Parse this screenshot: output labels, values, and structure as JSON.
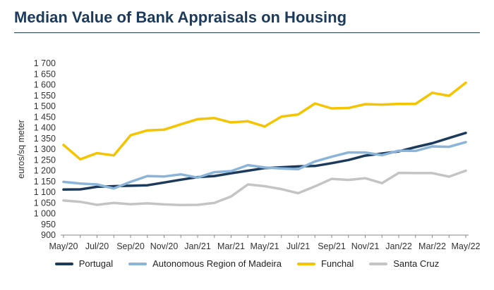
{
  "chart_data": {
    "type": "line",
    "title": "Median Value of Bank Appraisals on Housing",
    "ylabel": "euros/sq meter",
    "xlabel": "",
    "ylim": [
      900,
      1700
    ],
    "y_tick_labels": [
      "900",
      "950",
      "1 000",
      "1 050",
      "1 100",
      "1 150",
      "1 200",
      "1 250",
      "1 300",
      "1 350",
      "1 400",
      "1 450",
      "1 500",
      "1 550",
      "1 600",
      "1 650",
      "1 700"
    ],
    "y_ticks": [
      900,
      950,
      1000,
      1050,
      1100,
      1150,
      1200,
      1250,
      1300,
      1350,
      1400,
      1450,
      1500,
      1550,
      1600,
      1650,
      1700
    ],
    "categories": [
      "May/20",
      "Jun/20",
      "Jul/20",
      "Aug/20",
      "Sep/20",
      "Oct/20",
      "Nov/20",
      "Dec/20",
      "Jan/21",
      "Feb/21",
      "Mar/21",
      "Apr/21",
      "May/21",
      "Jun/21",
      "Jul/21",
      "Aug/21",
      "Sep/21",
      "Oct/21",
      "Nov/21",
      "Dec/21",
      "Jan/22",
      "Feb/22",
      "Mar/22",
      "Apr/22",
      "May/22"
    ],
    "x_tick_labels": [
      "May/20",
      "Jul/20",
      "Sep/20",
      "Nov/20",
      "Jan/21",
      "Mar/21",
      "May/21",
      "Jul/21",
      "Sep/21",
      "Nov/21",
      "Jan/22",
      "Mar/22",
      "May/22"
    ],
    "grid": false,
    "legend_position": "bottom",
    "series": [
      {
        "name": "Portugal",
        "color": "#1b3a5c",
        "values": [
          1112,
          1113,
          1125,
          1128,
          1130,
          1132,
          1145,
          1158,
          1170,
          1175,
          1188,
          1200,
          1212,
          1216,
          1220,
          1222,
          1235,
          1250,
          1270,
          1280,
          1290,
          1310,
          1328,
          1352,
          1376
        ]
      },
      {
        "name": "Autonomous Region of Madeira",
        "color": "#8ab4d8",
        "values": [
          1148,
          1140,
          1136,
          1117,
          1148,
          1175,
          1173,
          1183,
          1168,
          1193,
          1198,
          1226,
          1215,
          1210,
          1207,
          1243,
          1265,
          1285,
          1285,
          1272,
          1293,
          1292,
          1313,
          1311,
          1333
        ]
      },
      {
        "name": "Funchal",
        "color": "#f5c400",
        "values": [
          1320,
          1253,
          1282,
          1271,
          1365,
          1388,
          1391,
          1416,
          1440,
          1445,
          1425,
          1430,
          1406,
          1452,
          1462,
          1513,
          1490,
          1492,
          1510,
          1508,
          1511,
          1511,
          1563,
          1549,
          1610
        ]
      },
      {
        "name": "Santa Cruz",
        "color": "#c4c4c4",
        "values": [
          1061,
          1055,
          1041,
          1050,
          1044,
          1048,
          1043,
          1040,
          1041,
          1050,
          1080,
          1136,
          1128,
          1114,
          1095,
          1127,
          1162,
          1157,
          1165,
          1142,
          1190,
          1189,
          1189,
          1172,
          1200
        ]
      }
    ]
  }
}
